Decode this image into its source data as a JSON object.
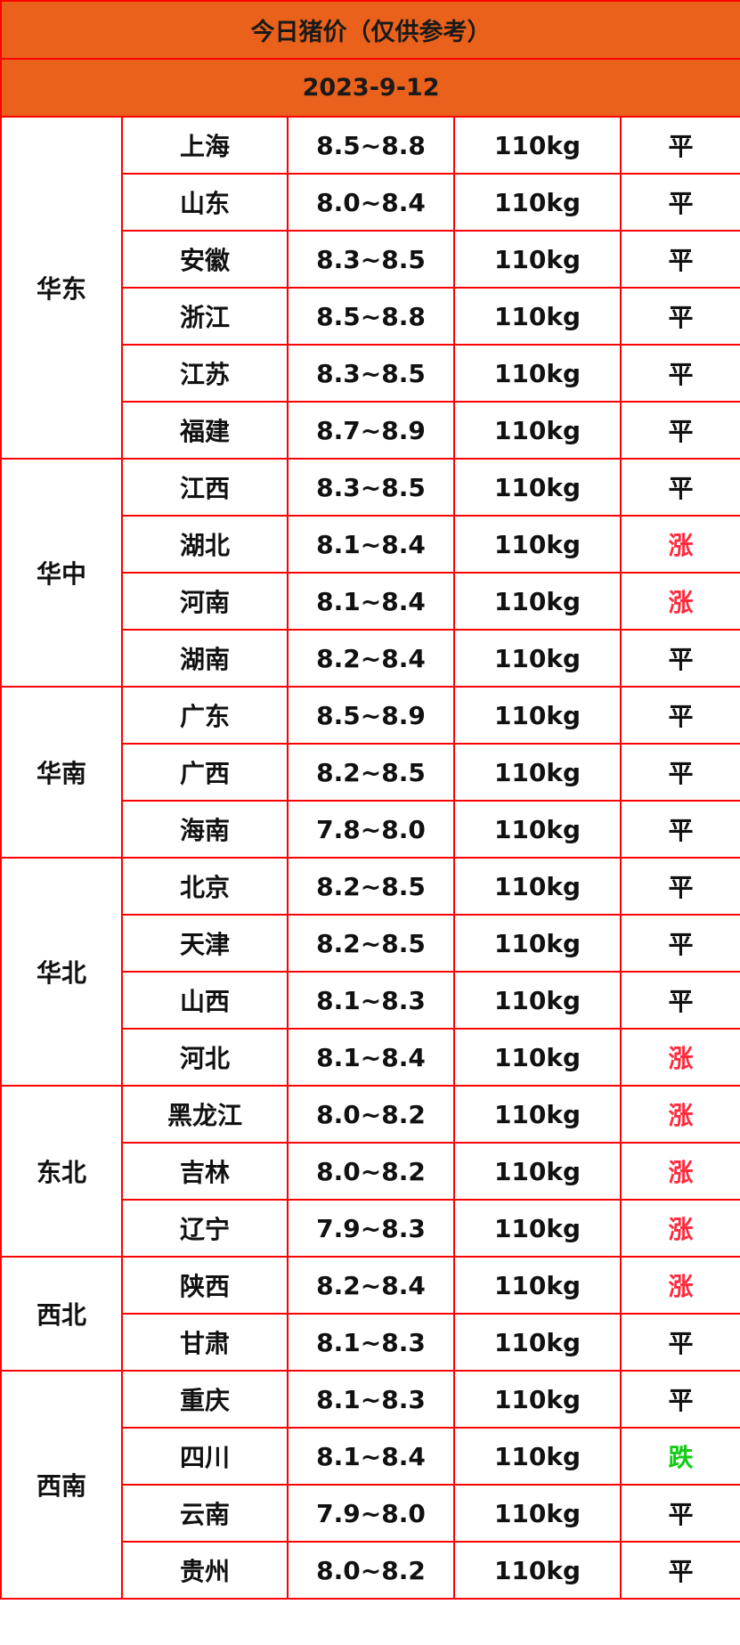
{
  "title": "今日猪价（仅供参考）",
  "date": "2023-9-12",
  "colors": {
    "header_bg": "#e9611a",
    "border": "#ff0000",
    "rise": "#ff2a3c",
    "fall": "#11cc11"
  },
  "regions": [
    {
      "name": "华东",
      "rows": [
        {
          "province": "上海",
          "price": "8.5~8.8",
          "weight": "110kg",
          "trend": "平"
        },
        {
          "province": "山东",
          "price": "8.0~8.4",
          "weight": "110kg",
          "trend": "平"
        },
        {
          "province": "安徽",
          "price": "8.3~8.5",
          "weight": "110kg",
          "trend": "平"
        },
        {
          "province": "浙江",
          "price": "8.5~8.8",
          "weight": "110kg",
          "trend": "平"
        },
        {
          "province": "江苏",
          "price": "8.3~8.5",
          "weight": "110kg",
          "trend": "平"
        },
        {
          "province": "福建",
          "price": "8.7~8.9",
          "weight": "110kg",
          "trend": "平"
        }
      ]
    },
    {
      "name": "华中",
      "rows": [
        {
          "province": "江西",
          "price": "8.3~8.5",
          "weight": "110kg",
          "trend": "平"
        },
        {
          "province": "湖北",
          "price": "8.1~8.4",
          "weight": "110kg",
          "trend": "涨"
        },
        {
          "province": "河南",
          "price": "8.1~8.4",
          "weight": "110kg",
          "trend": "涨"
        },
        {
          "province": "湖南",
          "price": "8.2~8.4",
          "weight": "110kg",
          "trend": "平"
        }
      ]
    },
    {
      "name": "华南",
      "rows": [
        {
          "province": "广东",
          "price": "8.5~8.9",
          "weight": "110kg",
          "trend": "平"
        },
        {
          "province": "广西",
          "price": "8.2~8.5",
          "weight": "110kg",
          "trend": "平"
        },
        {
          "province": "海南",
          "price": "7.8~8.0",
          "weight": "110kg",
          "trend": "平"
        }
      ]
    },
    {
      "name": "华北",
      "rows": [
        {
          "province": "北京",
          "price": "8.2~8.5",
          "weight": "110kg",
          "trend": "平"
        },
        {
          "province": "天津",
          "price": "8.2~8.5",
          "weight": "110kg",
          "trend": "平"
        },
        {
          "province": "山西",
          "price": "8.1~8.3",
          "weight": "110kg",
          "trend": "平"
        },
        {
          "province": "河北",
          "price": "8.1~8.4",
          "weight": "110kg",
          "trend": "涨"
        }
      ]
    },
    {
      "name": "东北",
      "rows": [
        {
          "province": "黑龙江",
          "price": "8.0~8.2",
          "weight": "110kg",
          "trend": "涨"
        },
        {
          "province": "吉林",
          "price": "8.0~8.2",
          "weight": "110kg",
          "trend": "涨"
        },
        {
          "province": "辽宁",
          "price": "7.9~8.3",
          "weight": "110kg",
          "trend": "涨"
        }
      ]
    },
    {
      "name": "西北",
      "rows": [
        {
          "province": "陕西",
          "price": "8.2~8.4",
          "weight": "110kg",
          "trend": "涨"
        },
        {
          "province": "甘肃",
          "price": "8.1~8.3",
          "weight": "110kg",
          "trend": "平"
        }
      ]
    },
    {
      "name": "西南",
      "rows": [
        {
          "province": "重庆",
          "price": "8.1~8.3",
          "weight": "110kg",
          "trend": "平"
        },
        {
          "province": "四川",
          "price": "8.1~8.4",
          "weight": "110kg",
          "trend": "跌"
        },
        {
          "province": "云南",
          "price": "7.9~8.0",
          "weight": "110kg",
          "trend": "平"
        },
        {
          "province": "贵州",
          "price": "8.0~8.2",
          "weight": "110kg",
          "trend": "平"
        }
      ]
    }
  ]
}
